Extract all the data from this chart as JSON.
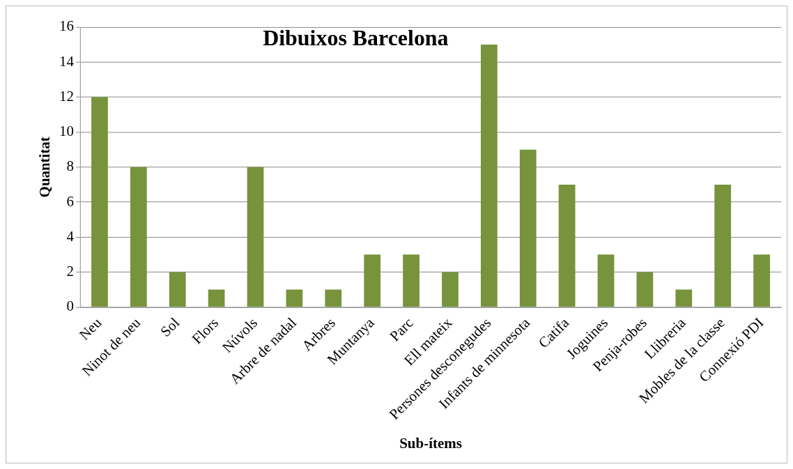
{
  "chart_data": {
    "type": "bar",
    "title": "Dibuixos Barcelona",
    "xlabel": "Sub-ítems",
    "ylabel": "Quantitat",
    "categories": [
      "Neu",
      "Ninot de neu",
      "Sol",
      "Flors",
      "Núvols",
      "Arbre de nadal",
      "Arbres",
      "Muntanya",
      "Parc",
      "Ell mateix",
      "Persones desconegudes",
      "Infants de minnesota",
      "Catifa",
      "Joguines",
      "Penja-robes",
      "Llibreria",
      "Mobles de la classe",
      "Connexió PDI"
    ],
    "values": [
      12,
      8,
      2,
      1,
      8,
      1,
      1,
      3,
      3,
      2,
      15,
      9,
      7,
      3,
      2,
      1,
      7,
      3
    ],
    "color": "#77933c",
    "ylim": [
      0,
      16
    ],
    "yticks": [
      0,
      2,
      4,
      6,
      8,
      10,
      12,
      14,
      16
    ],
    "grid": "y",
    "legend": false
  }
}
